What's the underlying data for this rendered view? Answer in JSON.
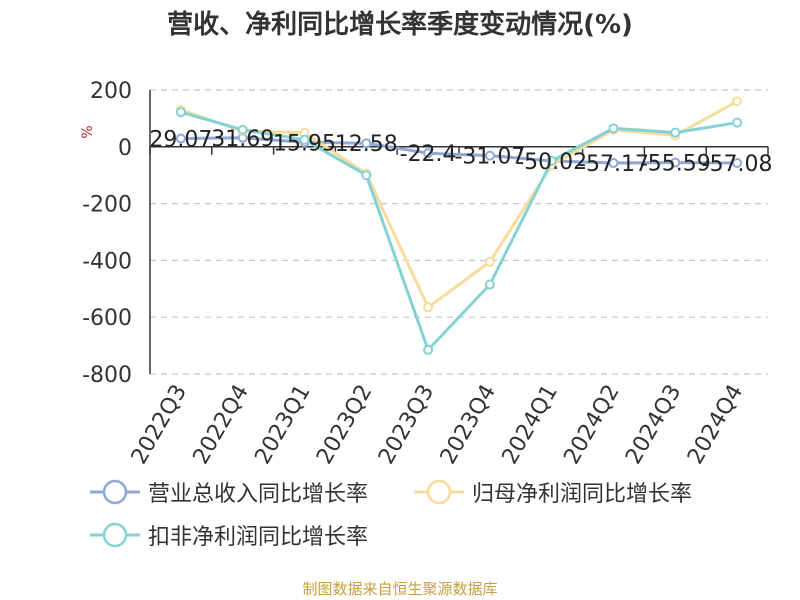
{
  "title": "营收、净利同比增长率季度变动情况(%)",
  "source": "制图数据来自恒生聚源数据库",
  "chart_data": {
    "type": "line",
    "title": "营收、净利同比增长率季度变动情况(%)",
    "ylabel": "%",
    "xlabel": "",
    "categories": [
      "2022Q3",
      "2022Q4",
      "2023Q1",
      "2023Q2",
      "2023Q3",
      "2023Q4",
      "2024Q1",
      "2024Q2",
      "2024Q3",
      "2024Q4"
    ],
    "ylim": [
      -800,
      200
    ],
    "yticks": [
      200,
      0,
      -200,
      -400,
      -600,
      -800
    ],
    "grid": "horizontal-dashed",
    "legend_position": "bottom",
    "series": [
      {
        "name": "营业总收入同比增长率",
        "color": "#8fa8d6",
        "values": [
          29.07,
          31.69,
          15.95,
          12.58,
          -22.4,
          -31.07,
          -50.02,
          -57.17,
          -55.59,
          -57.08
        ],
        "labels": [
          "29.07",
          "31.69",
          "15.95",
          "12.58",
          "-22.4",
          "-31.07",
          "-50.02",
          "-57.17",
          "-55.59",
          "-57.08"
        ]
      },
      {
        "name": "归母净利润同比增长率",
        "color": "#f9dc9c",
        "values": [
          130,
          55,
          50,
          -95,
          -565,
          -405,
          -65,
          60,
          40,
          160
        ]
      },
      {
        "name": "扣非净利润同比增长率",
        "color": "#85d2d4",
        "values": [
          122,
          60,
          25,
          -100,
          -715,
          -485,
          -50,
          65,
          50,
          85
        ]
      }
    ]
  }
}
